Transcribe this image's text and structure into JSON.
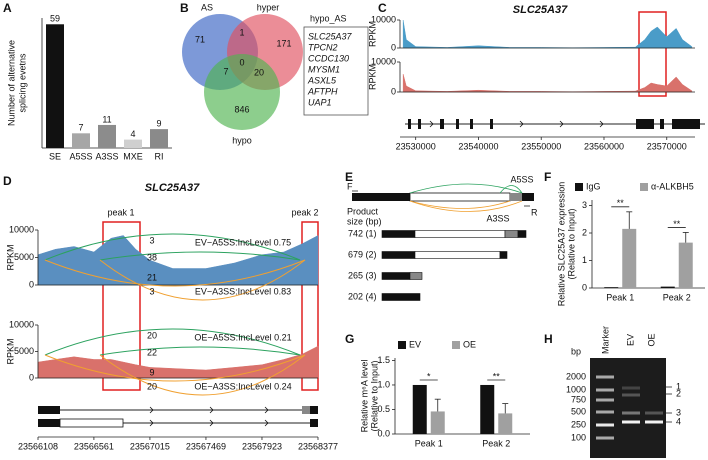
{
  "chart_data": [
    {
      "panel": "A",
      "type": "bar",
      "ylabel": [
        "Number of alternative",
        "splicing evetns"
      ],
      "categories": [
        "SE",
        "A5SS",
        "A3SS",
        "MXE",
        "RI"
      ],
      "values": [
        59,
        7,
        11,
        4,
        9
      ],
      "colors": [
        "#111111",
        "#a6a6a6",
        "#8c8c8c",
        "#cfcfcf",
        "#8a8a8a"
      ],
      "ylim": [
        0,
        62
      ]
    },
    {
      "panel": "C",
      "type": "track",
      "title": "SLC25A37",
      "ylabel": "RPKM",
      "xlim": [
        23527500,
        23574500
      ],
      "xticks": [
        23530000,
        23540000,
        23550000,
        23560000,
        23570000
      ],
      "ylim": [
        0,
        10000
      ],
      "yticks": [
        0,
        10000
      ],
      "x": [
        23528000,
        23528500,
        23530000,
        23535000,
        23540000,
        23545000,
        23550000,
        23555000,
        23560000,
        23565000,
        23566500,
        23567500,
        23568500,
        23570000,
        23571500,
        23572500,
        23574000
      ],
      "series": [
        {
          "name": "EV",
          "color": "#4a9cc8",
          "values": [
            10000,
            3000,
            500,
            200,
            800,
            200,
            200,
            100,
            200,
            300,
            3000,
            6000,
            7500,
            4000,
            7000,
            3000,
            500
          ]
        },
        {
          "name": "OE",
          "color": "#d9716b",
          "values": [
            6000,
            2000,
            400,
            200,
            600,
            200,
            200,
            100,
            200,
            300,
            1500,
            3000,
            2500,
            2000,
            5000,
            2500,
            400
          ]
        }
      ]
    },
    {
      "panel": "D",
      "type": "sashimi",
      "title": "SLC25A37",
      "ylabel": "RPKM",
      "annotations": [
        "peak 1",
        "peak 2"
      ],
      "xlim": [
        23566108,
        23568377
      ],
      "xticks": [
        23566108,
        23566561,
        23567015,
        23567469,
        23567923,
        23568377
      ],
      "ylim": [
        0,
        10000
      ],
      "yticks": [
        0,
        5000,
        10000
      ],
      "x": [
        23566108,
        23566250,
        23566400,
        23566561,
        23566700,
        23566800,
        23566900,
        23567015,
        23567200,
        23567469,
        23567700,
        23567923,
        23568100,
        23568250,
        23568377
      ],
      "series": [
        {
          "color": "#5a8fc0",
          "values": [
            5500,
            6500,
            7000,
            6000,
            8500,
            9000,
            6500,
            4500,
            3000,
            3000,
            4000,
            5500,
            6000,
            7500,
            9000
          ],
          "arcs": [
            3,
            38,
            21,
            3
          ],
          "arc_colors": [
            "#2ca25f",
            "#2ca25f",
            "#f0a030",
            "#f0a030"
          ],
          "notes": [
            "EV−A5SS:IncLevel 0.75",
            "EV−A3SS:IncLevel 0.83"
          ],
          "note_colors": [
            "#2ca25f",
            "#f0a030"
          ]
        },
        {
          "color": "#d9716b",
          "values": [
            3000,
            3500,
            4000,
            3500,
            3500,
            3000,
            2500,
            2000,
            1800,
            1500,
            2000,
            2500,
            3500,
            4500,
            6000
          ],
          "arcs": [
            20,
            22,
            9,
            20
          ],
          "arc_colors": [
            "#2ca25f",
            "#2ca25f",
            "#f0a030",
            "#f0a030"
          ],
          "notes": [
            "OE−A5SS:IncLevel 0.21",
            "OE−A3SS:IncLevel 0.24"
          ],
          "note_colors": [
            "#2ca25f",
            "#f0a030"
          ]
        }
      ]
    },
    {
      "panel": "F",
      "type": "grouped_bar",
      "ylabel": [
        "Relative SLC25A37 expression",
        "(Relative to Input)"
      ],
      "categories": [
        "Peak 1",
        "Peak 2"
      ],
      "ylim": [
        0,
        3.2
      ],
      "yticks": [
        0,
        1,
        2,
        3
      ],
      "significance": [
        "**",
        "**"
      ],
      "series": [
        {
          "name": "IgG",
          "color": "#111111",
          "values": [
            0.03,
            0.05
          ]
        },
        {
          "name": "α-ALKBH5",
          "color": "#a0a0a0",
          "values": [
            2.15,
            1.65
          ],
          "errors": [
            0.62,
            0.37
          ]
        }
      ]
    },
    {
      "panel": "G",
      "type": "grouped_bar",
      "ylabel": [
        "Relative m⁶A level",
        "(Relative to Input)"
      ],
      "categories": [
        "Peak 1",
        "Peak 2"
      ],
      "ylim": [
        0,
        1.55
      ],
      "yticks": [
        {
          "value": 0,
          "label": "0.0"
        },
        {
          "value": 0.5,
          "label": "0.5"
        },
        {
          "value": 1,
          "label": "1.0"
        },
        {
          "value": 1.5,
          "label": "1.5"
        }
      ],
      "significance": [
        "*",
        "**"
      ],
      "series": [
        {
          "name": "EV",
          "color": "#111111",
          "values": [
            1.0,
            1.0
          ]
        },
        {
          "name": "OE",
          "color": "#a0a0a0",
          "values": [
            0.46,
            0.42
          ],
          "errors": [
            0.25,
            0.2
          ]
        }
      ]
    }
  ],
  "venn": {
    "panel": "B",
    "sets": [
      "AS",
      "hyper",
      "hypo"
    ],
    "counts": [
      71,
      1,
      171,
      7,
      0,
      20,
      846
    ],
    "list_title": "hypo_AS",
    "genes": [
      "SLC25A37",
      "TPCN2",
      "CCDC130",
      "MYSM1",
      "ASXL5",
      "AFTPH",
      "UAP1"
    ]
  },
  "diagram": {
    "panel": "E",
    "forward": "F",
    "reverse": "R",
    "a5ss": "A5SS",
    "a3ss": "A3SS",
    "size_label": [
      "Product",
      "size (bp)"
    ],
    "products": [
      "742 (1)",
      "679 (2)",
      "265 (3)",
      "202 (4)"
    ]
  },
  "gel": {
    "panel": "H",
    "lanes": [
      "Marker",
      "EV",
      "OE"
    ],
    "unit": "bp",
    "ladder": [
      "2000",
      "1000",
      "750",
      "500",
      "250",
      "100"
    ],
    "bands": [
      "1",
      "2",
      "3",
      "4"
    ]
  }
}
